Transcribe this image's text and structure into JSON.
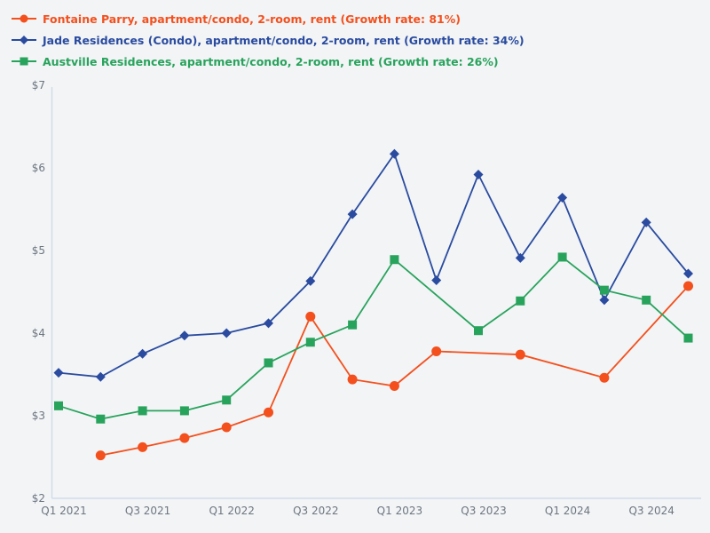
{
  "page": {
    "background_color": "#f2f4f6"
  },
  "chart_data": {
    "type": "line",
    "title": "",
    "xlabel": "",
    "ylabel": "",
    "ylim": [
      2,
      7
    ],
    "grid": false,
    "legend_position": "top-left",
    "axis_color": "#ccd8e8",
    "tick_label_color": "#6e7680",
    "categories": [
      "Q1 2021",
      "Q2 2021",
      "Q3 2021",
      "Q4 2021",
      "Q1 2022",
      "Q2 2022",
      "Q3 2022",
      "Q4 2022",
      "Q1 2023",
      "Q2 2023",
      "Q3 2023",
      "Q4 2023",
      "Q1 2024",
      "Q2 2024",
      "Q3 2024",
      "Q4 2024"
    ],
    "x_tick_labels": [
      "Q1 2021",
      "Q3 2021",
      "Q1 2022",
      "Q3 2022",
      "Q1 2023",
      "Q3 2023",
      "Q1 2024",
      "Q3 2024"
    ],
    "x_tick_indices": [
      0,
      2,
      4,
      6,
      8,
      10,
      12,
      14
    ],
    "y_tick_labels": [
      "$2",
      "$3",
      "$4",
      "$5",
      "$6",
      "$7"
    ],
    "y_tick_values": [
      2,
      3,
      4,
      5,
      6,
      7
    ],
    "series": [
      {
        "name": "Fontaine Parry, apartment/condo, 2-room, rent (Growth rate: 81%)",
        "color": "#f4501d",
        "marker": "circle",
        "values": [
          null,
          2.52,
          2.62,
          2.73,
          2.86,
          3.04,
          4.2,
          3.44,
          3.36,
          3.78,
          null,
          3.74,
          null,
          3.46,
          null,
          4.57
        ]
      },
      {
        "name": "Jade Residences (Condo), apartment/condo, 2-room, rent (Growth rate: 34%)",
        "color": "#2a4b9f",
        "marker": "diamond",
        "values": [
          3.52,
          3.47,
          3.75,
          3.97,
          4.0,
          4.12,
          4.63,
          5.44,
          6.17,
          4.64,
          5.92,
          4.91,
          5.64,
          4.4,
          5.34,
          4.72
        ]
      },
      {
        "name": "Austville Residences, apartment/condo, 2-room, rent (Growth rate: 26%)",
        "color": "#28a35c",
        "marker": "square",
        "values": [
          3.12,
          2.96,
          3.06,
          3.06,
          3.19,
          3.64,
          3.89,
          4.1,
          4.89,
          null,
          4.03,
          4.39,
          4.92,
          4.52,
          4.4,
          3.94
        ]
      }
    ]
  }
}
